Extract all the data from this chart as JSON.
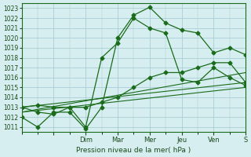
{
  "title": "",
  "xlabel": "Pression niveau de la mer( hPa )",
  "ylabel": "",
  "bg_color": "#d6eef0",
  "grid_color": "#a0c8d0",
  "line_color": "#1a6b1a",
  "ylim": [
    1010.5,
    1023.5
  ],
  "xlim": [
    0,
    7
  ],
  "yticks": [
    1011,
    1012,
    1013,
    1014,
    1015,
    1016,
    1017,
    1018,
    1019,
    1020,
    1021,
    1022,
    1023
  ],
  "xtick_labels": [
    "",
    "Dim",
    "Mar",
    "Mer",
    "Jeu",
    "Ven",
    "S"
  ],
  "xtick_positions": [
    1,
    2,
    3,
    4,
    5,
    6,
    7
  ],
  "series1_x": [
    0.0,
    0.5,
    1.0,
    1.5,
    2.0,
    2.5,
    3.0,
    3.5,
    4.0,
    4.5,
    5.0,
    5.5,
    6.0,
    6.5,
    7.0
  ],
  "series1_y": [
    1012.0,
    1011.0,
    1012.5,
    1012.5,
    1010.8,
    1013.0,
    1020.0,
    1022.3,
    1023.1,
    1021.5,
    1020.8,
    1020.5,
    1018.5,
    1019.0,
    1018.3
  ],
  "series2_x": [
    0.0,
    0.5,
    1.0,
    1.5,
    2.0,
    2.5,
    3.0,
    3.5,
    4.0,
    4.5,
    5.0,
    5.5,
    6.0,
    6.5,
    7.0
  ],
  "series2_y": [
    1013.0,
    1013.2,
    1013.0,
    1013.0,
    1013.0,
    1013.5,
    1014.0,
    1015.0,
    1016.0,
    1016.5,
    1016.5,
    1017.0,
    1017.5,
    1017.5,
    1015.5
  ],
  "series3_x": [
    0.0,
    7.0
  ],
  "series3_y": [
    1013.0,
    1015.5
  ],
  "series4_x": [
    0.0,
    7.0
  ],
  "series4_y": [
    1012.5,
    1016.5
  ],
  "series5_x": [
    0.0,
    7.0
  ],
  "series5_y": [
    1012.5,
    1015.0
  ],
  "series6_x": [
    0.0,
    0.5,
    1.0,
    1.5,
    2.0,
    2.5,
    3.0,
    3.5,
    4.0,
    4.5,
    5.0,
    5.5,
    6.0,
    6.5,
    7.0
  ],
  "series6_y": [
    1013.0,
    1012.5,
    1012.3,
    1013.0,
    1011.0,
    1018.0,
    1019.5,
    1022.0,
    1021.0,
    1020.5,
    1015.8,
    1015.5,
    1017.0,
    1016.0,
    1015.2
  ],
  "tick_color": "#1a4a1a"
}
